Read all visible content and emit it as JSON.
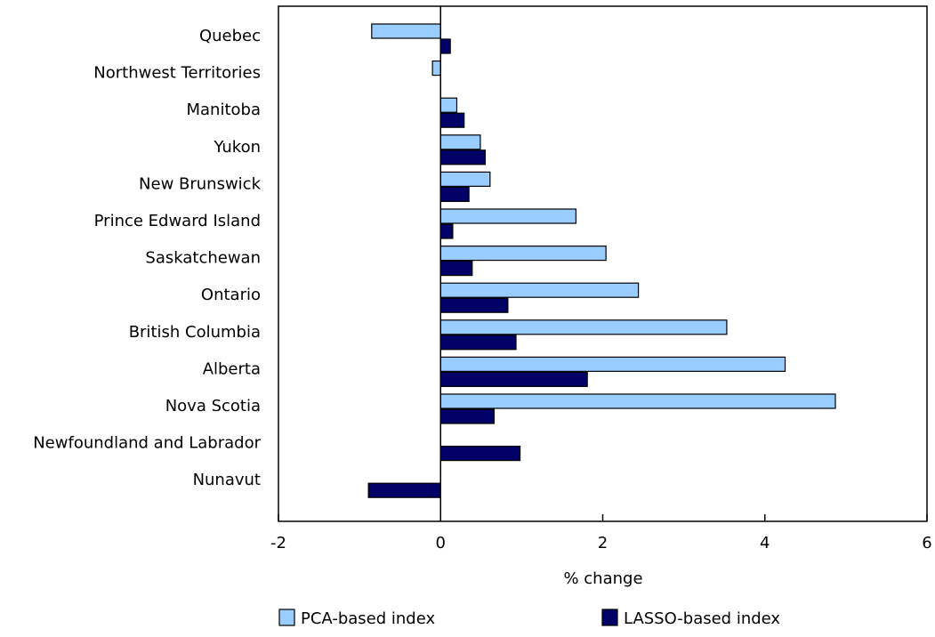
{
  "chart_data": {
    "type": "bar",
    "orientation": "horizontal",
    "categories": [
      "Quebec",
      "Northwest Territories",
      "Manitoba",
      "Yukon",
      "New Brunswick",
      "Prince Edward Island",
      "Saskatchewan",
      "Ontario",
      "British Columbia",
      "Alberta",
      "Nova Scotia",
      "Newfoundland and Labrador",
      "Nunavut"
    ],
    "series": [
      {
        "name": "PCA-based index",
        "color": "#99ccff",
        "values": [
          -0.85,
          -0.1,
          0.2,
          0.49,
          0.61,
          1.67,
          2.04,
          2.44,
          3.53,
          4.25,
          4.87,
          null,
          null
        ]
      },
      {
        "name": "LASSO-based index",
        "color": "#000066",
        "values": [
          0.12,
          null,
          0.29,
          0.55,
          0.35,
          0.15,
          0.39,
          0.83,
          0.93,
          1.81,
          0.66,
          0.98,
          -0.89
        ]
      }
    ],
    "xlabel": "% change",
    "xlim": [
      -2,
      6
    ],
    "xticks": [
      -2,
      0,
      2,
      4,
      6
    ],
    "xtick_labels": [
      "-2",
      "0",
      "2",
      "4",
      "6"
    ],
    "grid": false,
    "legend_position": "bottom"
  }
}
